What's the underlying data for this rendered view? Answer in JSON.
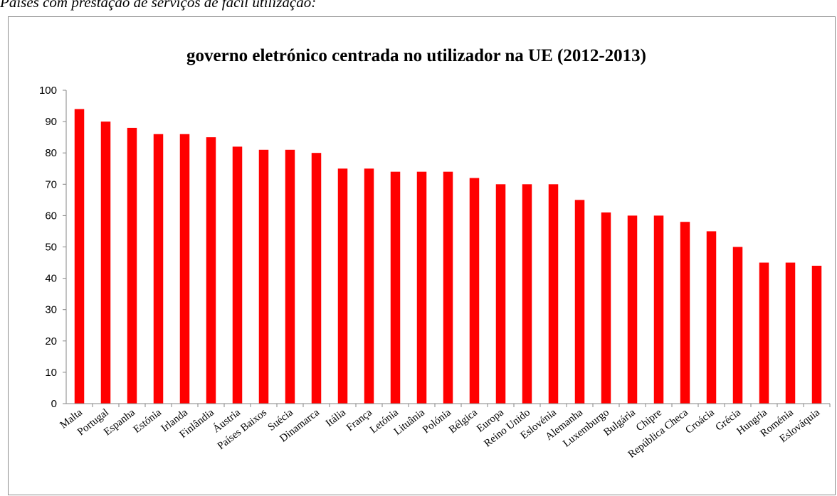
{
  "caption": "Países com prestação de serviços de fácil utilização:",
  "chart_data": {
    "type": "bar",
    "title": "governo eletrónico centrada no utilizador na UE (2012-2013)",
    "xlabel": "",
    "ylabel": "",
    "ylim": [
      0,
      100
    ],
    "yticks": [
      0,
      10,
      20,
      30,
      40,
      50,
      60,
      70,
      80,
      90,
      100
    ],
    "grid": false,
    "bar_color": "#ff0000",
    "categories": [
      "Malta",
      "Portugal",
      "Espanha",
      "Estónia",
      "Irlanda",
      "Finlândia",
      "Áustria",
      "Países Baixos",
      "Suécia",
      "Dinamarca",
      "Itália",
      "França",
      "Letónia",
      "Lituânia",
      "Polónia",
      "Bélgica",
      "Europa",
      "Reino Unido",
      "Eslovénia",
      "Alemanha",
      "Luxemburgo",
      "Bulgária",
      "Chipre",
      "República Checa",
      "Croácia",
      "Grécia",
      "Hungria",
      "Roménia",
      "Eslováquia"
    ],
    "values": [
      94,
      90,
      88,
      86,
      86,
      85,
      82,
      81,
      81,
      80,
      75,
      75,
      74,
      74,
      74,
      72,
      70,
      70,
      70,
      65,
      61,
      60,
      60,
      58,
      55,
      50,
      45,
      45,
      44
    ]
  }
}
